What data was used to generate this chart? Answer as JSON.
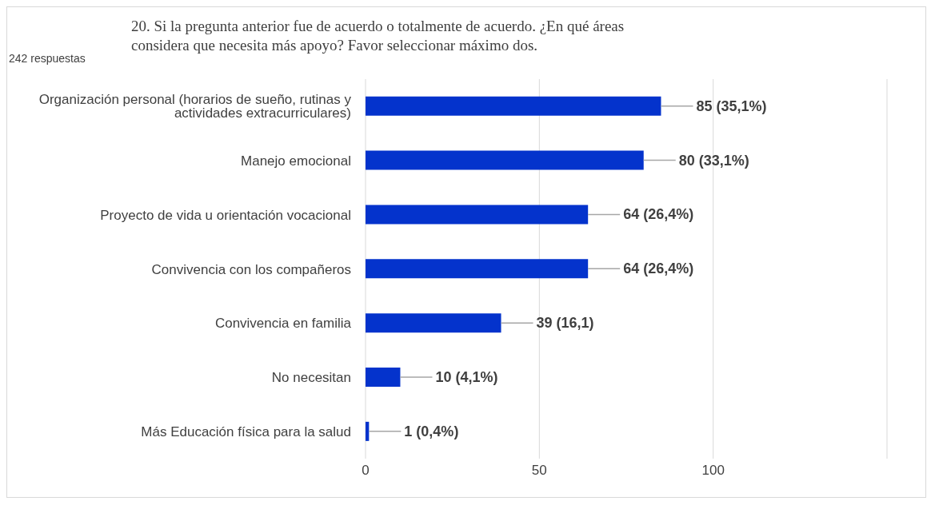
{
  "chart_data": {
    "type": "bar",
    "orientation": "horizontal",
    "title": "20. Si la pregunta anterior fue de acuerdo o totalmente de acuerdo. ¿En qué áreas considera que necesita más apoyo? Favor seleccionar máximo dos.",
    "subtitle": "242 respuestas",
    "categories": [
      "Organización personal (horarios de sueño, rutinas y actividades extracurriculares)",
      "Manejo emocional",
      "Proyecto de vida u orientación vocacional",
      "Convivencia con los compañeros",
      "Convivencia en familia",
      "No necesitan",
      "Más Educación física para la salud"
    ],
    "values": [
      85,
      80,
      64,
      64,
      39,
      10,
      1
    ],
    "value_labels": [
      "85 (35,1%)",
      "80 (33,1%)",
      "64 (26,4%)",
      "64 (26,4%)",
      "39 (16,1)",
      "10 (4,1%)",
      "1 (0,4%)"
    ],
    "color": "#0433cc",
    "xlim": [
      0,
      150
    ],
    "xticks": [
      0,
      50,
      100
    ],
    "grid": "x"
  }
}
